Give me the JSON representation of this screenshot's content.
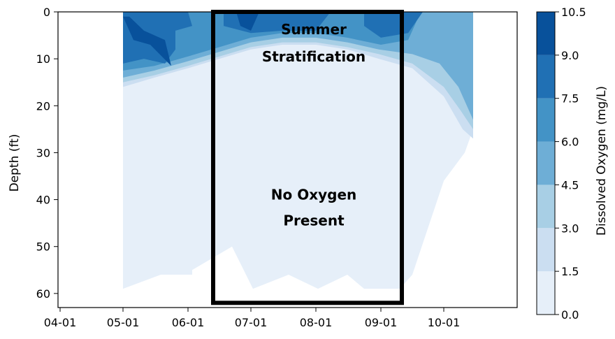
{
  "chart_data": {
    "type": "filled-contour",
    "title": "",
    "xlabel": "",
    "ylabel": "Depth (ft)",
    "colorbar_label": "Dissolved Oxygen (mg/L)",
    "x_tick_labels": [
      "04-01",
      "05-01",
      "06-01",
      "07-01",
      "08-01",
      "09-01",
      "10-01"
    ],
    "x_ticks": [
      "2021-04-01",
      "2021-05-01",
      "2021-06-01",
      "2021-07-01",
      "2021-08-01",
      "2021-09-01",
      "2021-10-01"
    ],
    "y_ticks": [
      0,
      10,
      20,
      30,
      40,
      50,
      60
    ],
    "ylim": [
      63,
      0
    ],
    "colorbar_ticks": [
      0.0,
      1.5,
      3.0,
      4.5,
      6.0,
      7.5,
      9.0,
      10.5
    ],
    "colorbar_tick_labels": [
      "0.0",
      "1.5",
      "3.0",
      "4.5",
      "6.0",
      "7.5",
      "9.0",
      "10.5"
    ],
    "levels": [
      0.0,
      1.5,
      3.0,
      4.5,
      6.0,
      7.5,
      9.0,
      10.5
    ],
    "level_colors": [
      "#e6eff9",
      "#cbdef1",
      "#a8cfe5",
      "#6eaed6",
      "#4393c6",
      "#2070b4",
      "#08519b"
    ],
    "contour_bands": [
      {
        "level": "0.0-1.5",
        "color": "#e6eff9",
        "points": [
          [
            "2021-05-01",
            0
          ],
          [
            "2021-10-15",
            0
          ],
          [
            "2021-10-15",
            25
          ],
          [
            "2021-10-11",
            30
          ],
          [
            "2021-10-01",
            36
          ],
          [
            "2021-09-16",
            56
          ],
          [
            "2021-09-10",
            59
          ],
          [
            "2021-08-24",
            59
          ],
          [
            "2021-08-16",
            56
          ],
          [
            "2021-08-02",
            59
          ],
          [
            "2021-07-19",
            56
          ],
          [
            "2021-07-02",
            59
          ],
          [
            "2021-06-22",
            50
          ],
          [
            "2021-06-03",
            55
          ],
          [
            "2021-06-03",
            56
          ],
          [
            "2021-05-19",
            56
          ],
          [
            "2021-05-01",
            59
          ]
        ]
      },
      {
        "level": "1.5-3.0",
        "color": "#cbdef1",
        "points": [
          [
            "2021-05-01",
            0
          ],
          [
            "2021-10-15",
            0
          ],
          [
            "2021-10-15",
            27
          ],
          [
            "2021-10-10",
            25
          ],
          [
            "2021-10-01",
            18
          ],
          [
            "2021-09-16",
            12
          ],
          [
            "2021-08-31",
            10
          ],
          [
            "2021-08-16",
            8
          ],
          [
            "2021-08-01",
            7
          ],
          [
            "2021-07-16",
            7
          ],
          [
            "2021-07-01",
            8
          ],
          [
            "2021-06-16",
            10
          ],
          [
            "2021-06-01",
            12
          ],
          [
            "2021-05-16",
            14
          ],
          [
            "2021-05-01",
            16
          ]
        ]
      },
      {
        "level": "3.0-4.5",
        "color": "#a8cfe5",
        "points": [
          [
            "2021-05-01",
            0
          ],
          [
            "2021-10-15",
            0
          ],
          [
            "2021-10-15",
            25
          ],
          [
            "2021-10-09",
            21
          ],
          [
            "2021-10-01",
            16
          ],
          [
            "2021-09-16",
            11
          ],
          [
            "2021-08-31",
            9
          ],
          [
            "2021-08-16",
            7.5
          ],
          [
            "2021-08-01",
            6.5
          ],
          [
            "2021-07-16",
            6.5
          ],
          [
            "2021-07-01",
            7.5
          ],
          [
            "2021-06-16",
            9.5
          ],
          [
            "2021-06-01",
            11.5
          ],
          [
            "2021-05-16",
            13.5
          ],
          [
            "2021-05-01",
            15
          ]
        ]
      },
      {
        "level": "4.5-6.0",
        "color": "#6eaed6",
        "points": [
          [
            "2021-05-01",
            0
          ],
          [
            "2021-10-15",
            0
          ],
          [
            "2021-10-15",
            23
          ],
          [
            "2021-10-08",
            16
          ],
          [
            "2021-09-29",
            11
          ],
          [
            "2021-09-16",
            9
          ],
          [
            "2021-08-31",
            8
          ],
          [
            "2021-08-16",
            6.5
          ],
          [
            "2021-08-01",
            5.5
          ],
          [
            "2021-07-16",
            5.5
          ],
          [
            "2021-07-01",
            6.5
          ],
          [
            "2021-06-16",
            8.5
          ],
          [
            "2021-06-01",
            10.5
          ],
          [
            "2021-05-16",
            12.5
          ],
          [
            "2021-05-01",
            14
          ]
        ]
      },
      {
        "level": "6.0-7.5",
        "color": "#4393c6",
        "points": [
          [
            "2021-05-01",
            0
          ],
          [
            "2021-09-20",
            0
          ],
          [
            "2021-09-14",
            6
          ],
          [
            "2021-09-01",
            7
          ],
          [
            "2021-08-16",
            5.5
          ],
          [
            "2021-08-01",
            4.5
          ],
          [
            "2021-07-16",
            4.5
          ],
          [
            "2021-07-01",
            5.5
          ],
          [
            "2021-06-16",
            7.5
          ],
          [
            "2021-06-01",
            9.5
          ],
          [
            "2021-05-16",
            11.5
          ],
          [
            "2021-05-01",
            12.5
          ]
        ]
      },
      {
        "level": "7.5-9.0",
        "color": "#2070b4",
        "points": [
          [
            "2021-05-01",
            0
          ],
          [
            "2021-06-01",
            0
          ],
          [
            "2021-06-03",
            3
          ],
          [
            "2021-05-26",
            4
          ],
          [
            "2021-05-26",
            8
          ],
          [
            "2021-05-21",
            11
          ],
          [
            "2021-05-11",
            10
          ],
          [
            "2021-05-01",
            11
          ]
        ]
      },
      {
        "level": "7.5-9.0",
        "color": "#2070b4",
        "points": [
          [
            "2021-06-18",
            0
          ],
          [
            "2021-08-08",
            0
          ],
          [
            "2021-08-01",
            4
          ],
          [
            "2021-07-16",
            4
          ],
          [
            "2021-07-01",
            4.5
          ],
          [
            "2021-06-18",
            3
          ]
        ]
      },
      {
        "level": "7.5-9.0",
        "color": "#2070b4",
        "points": [
          [
            "2021-08-24",
            0
          ],
          [
            "2021-09-21",
            0
          ],
          [
            "2021-09-14",
            4.5
          ],
          [
            "2021-09-01",
            5.5
          ],
          [
            "2021-08-24",
            3
          ]
        ]
      },
      {
        "level": "9.0-10.5",
        "color": "#08519b",
        "points": [
          [
            "2021-05-01",
            1
          ],
          [
            "2021-05-06",
            6
          ],
          [
            "2021-05-14",
            7
          ],
          [
            "2021-05-24",
            11.5
          ],
          [
            "2021-05-21",
            6
          ],
          [
            "2021-05-11",
            4
          ],
          [
            "2021-05-04",
            1
          ]
        ]
      },
      {
        "level": "9.0-10.5",
        "color": "#08519b",
        "points": [
          [
            "2021-06-24",
            0
          ],
          [
            "2021-07-05",
            0
          ],
          [
            "2021-07-01",
            4
          ],
          [
            "2021-06-26",
            3
          ]
        ]
      },
      {
        "level": "0.0-1.5",
        "color": "#e6eff9",
        "points": [
          [
            "2021-08-09",
            45
          ],
          [
            "2021-08-14",
            46
          ],
          [
            "2021-08-09",
            48
          ],
          [
            "2021-08-03",
            46
          ]
        ]
      }
    ],
    "annotation_box": {
      "x": [
        "2021-06-13",
        "2021-09-11"
      ],
      "y": [
        0,
        62
      ]
    },
    "annotations": [
      {
        "lines": [
          "Summer",
          "Stratification"
        ],
        "x": "2021-07-31",
        "y": [
          4.8,
          10.6
        ]
      },
      {
        "lines": [
          "No Oxygen",
          "Present"
        ],
        "x": "2021-07-31",
        "y": [
          40,
          45.5
        ]
      }
    ]
  }
}
